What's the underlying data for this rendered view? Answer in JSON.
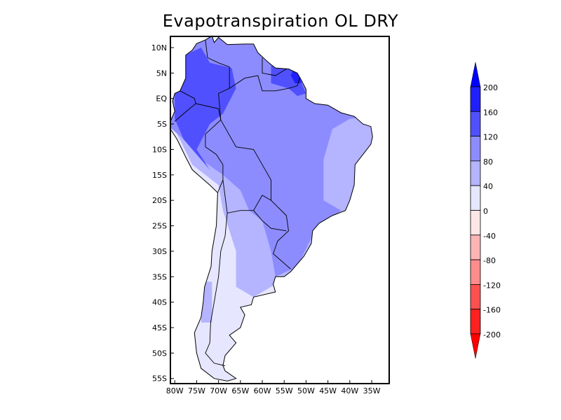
{
  "title": "Evapotranspiration OL DRY",
  "map": {
    "lat_ticks": [
      {
        "lat": 10,
        "label": "10N"
      },
      {
        "lat": 5,
        "label": "5N"
      },
      {
        "lat": 0,
        "label": "EQ"
      },
      {
        "lat": -5,
        "label": "5S"
      },
      {
        "lat": -10,
        "label": "10S"
      },
      {
        "lat": -15,
        "label": "15S"
      },
      {
        "lat": -20,
        "label": "20S"
      },
      {
        "lat": -25,
        "label": "25S"
      },
      {
        "lat": -30,
        "label": "30S"
      },
      {
        "lat": -35,
        "label": "35S"
      },
      {
        "lat": -40,
        "label": "40S"
      },
      {
        "lat": -45,
        "label": "45S"
      },
      {
        "lat": -50,
        "label": "50S"
      },
      {
        "lat": -55,
        "label": "55S"
      }
    ],
    "lon_ticks": [
      {
        "lon": -80,
        "label": "80W"
      },
      {
        "lon": -75,
        "label": "75W"
      },
      {
        "lon": -70,
        "label": "70W"
      },
      {
        "lon": -65,
        "label": "65W"
      },
      {
        "lon": -60,
        "label": "60W"
      },
      {
        "lon": -55,
        "label": "55W"
      },
      {
        "lon": -50,
        "label": "50W"
      },
      {
        "lon": -45,
        "label": "45W"
      },
      {
        "lon": -40,
        "label": "40W"
      },
      {
        "lon": -35,
        "label": "35W"
      }
    ],
    "lon_range": [
      -81,
      -31
    ],
    "lat_range": [
      -56,
      12.2
    ]
  },
  "colorbar": {
    "levels": [
      "200",
      "160",
      "120",
      "80",
      "40",
      "0",
      "-40",
      "-80",
      "-120",
      "-160",
      "-200"
    ],
    "colors": [
      "#2020ff",
      "#5050ff",
      "#8c8cff",
      "#b4b4ff",
      "#e6e6ff",
      "#ffe6e6",
      "#ffb4b4",
      "#ff8c8c",
      "#ff5050",
      "#ff2020"
    ],
    "top_arrow": "#0000ff",
    "bottom_arrow": "#ff0000"
  }
}
